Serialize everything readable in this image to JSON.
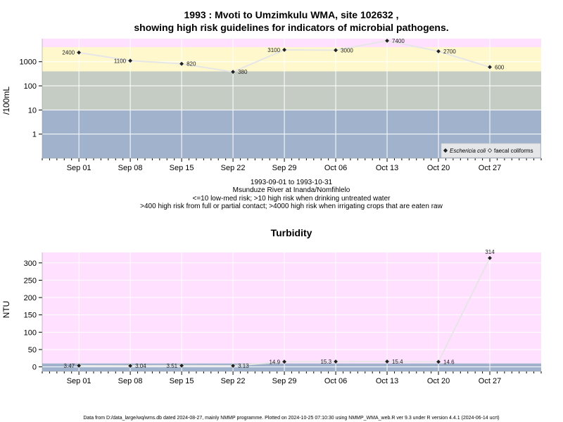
{
  "colors": {
    "band_pink": "#ffe0ff",
    "band_yellow": "#fff8cc",
    "band_grey": "#c4ccc4",
    "band_blue": "#a0b2cc",
    "gridline": "#ffffff",
    "line": "#e6e6e6",
    "point": "#222222",
    "axis": "#000000"
  },
  "chart_data": [
    {
      "type": "line",
      "title_line1": "1993 : Mvoti to Umzimkulu WMA, site 102632 ,",
      "title_line2": "showing high risk guidelines for indicators of microbial pathogens.",
      "ylabel": "/100mL",
      "yscale": "log",
      "ylim": [
        0.1,
        9000
      ],
      "yticks": [
        1,
        10,
        100,
        1000
      ],
      "ytick_labels": [
        "1",
        "10",
        "100",
        "1000"
      ],
      "bands": [
        {
          "from": 0.1,
          "to": 10,
          "color": "band_blue"
        },
        {
          "from": 10,
          "to": 400,
          "color": "band_grey"
        },
        {
          "from": 400,
          "to": 4000,
          "color": "band_yellow"
        },
        {
          "from": 4000,
          "to": 9000,
          "color": "band_pink"
        }
      ],
      "xlim": [
        "1993-08-27",
        "1993-11-03"
      ],
      "xticks": [
        {
          "date": "1993-09-01",
          "label": "Sep 01"
        },
        {
          "date": "1993-09-08",
          "label": "Sep 08"
        },
        {
          "date": "1993-09-15",
          "label": "Sep 15"
        },
        {
          "date": "1993-09-22",
          "label": "Sep 22"
        },
        {
          "date": "1993-09-29",
          "label": "Sep 29"
        },
        {
          "date": "1993-10-06",
          "label": "Oct 06"
        },
        {
          "date": "1993-10-13",
          "label": "Oct 13"
        },
        {
          "date": "1993-10-20",
          "label": "Oct 20"
        },
        {
          "date": "1993-10-27",
          "label": "Oct 27"
        }
      ],
      "series": [
        {
          "name": "Eschericia coli",
          "points": [
            {
              "x": "1993-09-01",
              "y": 2400,
              "label": "2400",
              "label_pos": "left"
            },
            {
              "x": "1993-09-08",
              "y": 1100,
              "label": "1100",
              "label_pos": "left"
            },
            {
              "x": "1993-09-15",
              "y": 820,
              "label": "820",
              "label_pos": "right"
            },
            {
              "x": "1993-09-22",
              "y": 380,
              "label": "380",
              "label_pos": "right"
            },
            {
              "x": "1993-09-29",
              "y": 3100,
              "label": "3100",
              "label_pos": "left"
            },
            {
              "x": "1993-10-06",
              "y": 3000,
              "label": "3000",
              "label_pos": "right"
            },
            {
              "x": "1993-10-13",
              "y": 7400,
              "label": "7400",
              "label_pos": "right"
            },
            {
              "x": "1993-10-20",
              "y": 2700,
              "label": "2700",
              "label_pos": "right"
            },
            {
              "x": "1993-10-27",
              "y": 600,
              "label": "600",
              "label_pos": "right"
            }
          ]
        }
      ],
      "legend": {
        "placement": "bottom-right",
        "entries": [
          {
            "label": "Eschericia coli",
            "marker": "filled-diamond",
            "italic": true
          },
          {
            "label": "faecal coliforms",
            "marker": "open-diamond",
            "italic": false
          }
        ]
      },
      "notes": [
        "1993-09-01 to 1993-10-31",
        "Msunduze River at Inanda/Nomfihlelo",
        "<=10 low-med risk; >10 high risk when drinking untreated water",
        ">400 high risk from full or partial contact; >4000 high risk when irrigating crops that are eaten raw"
      ]
    },
    {
      "type": "line",
      "title": "Turbidity",
      "ylabel": "NTU",
      "yscale": "linear",
      "ylim": [
        -13,
        330
      ],
      "yticks": [
        0,
        50,
        100,
        150,
        200,
        250,
        300
      ],
      "ytick_labels": [
        "0",
        "50",
        "100",
        "150",
        "200",
        "250",
        "300"
      ],
      "bands": [
        {
          "from": -13,
          "to": 10,
          "color": "band_blue"
        },
        {
          "from": 10,
          "to": 330,
          "color": "band_pink"
        }
      ],
      "xlim": [
        "1993-08-27",
        "1993-11-03"
      ],
      "xticks": [
        {
          "date": "1993-09-01",
          "label": "Sep 01"
        },
        {
          "date": "1993-09-08",
          "label": "Sep 08"
        },
        {
          "date": "1993-09-15",
          "label": "Sep 15"
        },
        {
          "date": "1993-09-22",
          "label": "Sep 22"
        },
        {
          "date": "1993-09-29",
          "label": "Sep 29"
        },
        {
          "date": "1993-10-06",
          "label": "Oct 06"
        },
        {
          "date": "1993-10-13",
          "label": "Oct 13"
        },
        {
          "date": "1993-10-20",
          "label": "Oct 20"
        },
        {
          "date": "1993-10-27",
          "label": "Oct 27"
        }
      ],
      "series": [
        {
          "points": [
            {
              "x": "1993-09-01",
              "y": 3.47,
              "label": "3.47",
              "label_pos": "left"
            },
            {
              "x": "1993-09-08",
              "y": 3.04,
              "label": "3.04",
              "label_pos": "right"
            },
            {
              "x": "1993-09-15",
              "y": 3.51,
              "label": "3.51",
              "label_pos": "left"
            },
            {
              "x": "1993-09-22",
              "y": 3.13,
              "label": "3.13",
              "label_pos": "right"
            },
            {
              "x": "1993-09-29",
              "y": 14.9,
              "label": "14.9",
              "label_pos": "left"
            },
            {
              "x": "1993-10-06",
              "y": 15.3,
              "label": "15.3",
              "label_pos": "left"
            },
            {
              "x": "1993-10-13",
              "y": 15.4,
              "label": "15.4",
              "label_pos": "right"
            },
            {
              "x": "1993-10-20",
              "y": 14.6,
              "label": "14.6",
              "label_pos": "right"
            },
            {
              "x": "1993-10-27",
              "y": 314,
              "label": "314",
              "label_pos": "above"
            }
          ]
        }
      ]
    }
  ],
  "footer": "Data from D:/data_large/wq/wms.db dated 2024-08-27, mainly NMMP programme. Plotted on 2024-10-25 07:10:30 using NMMP_WMA_web.R ver 9.3 under R version 4.4.1 (2024-06-14 ucrt)"
}
